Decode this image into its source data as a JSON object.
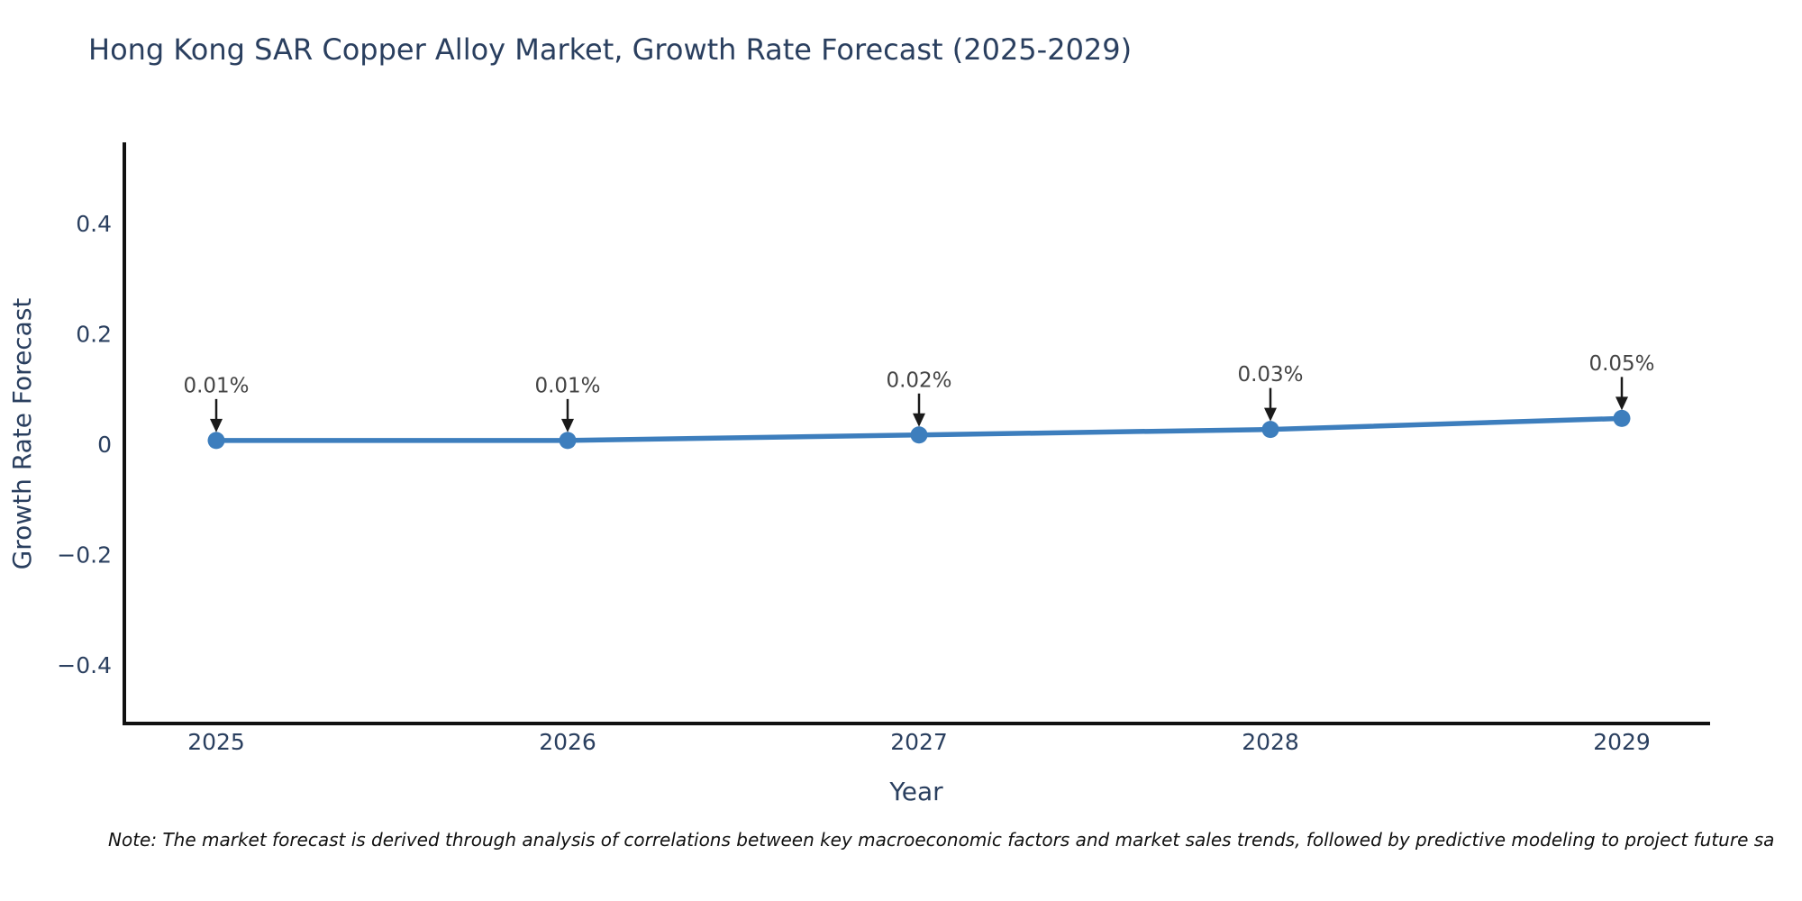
{
  "title": "Hong Kong SAR Copper Alloy Market, Growth Rate Forecast (2025-2029)",
  "note": "Note: The market forecast is derived through analysis of correlations between key macroeconomic factors and market sales trends, followed by predictive modeling to project future sa",
  "colors": {
    "line": "#3d7ebd",
    "marker": "#3d7ebd",
    "title_text": "#2a3f5f",
    "tick_text": "#2a3f5f",
    "axis_title_text": "#2a3f5f",
    "annotation_text": "#444444",
    "arrow": "#1a1a1a",
    "axis_line": "#111111",
    "background": "#ffffff"
  },
  "chart_data": {
    "type": "line",
    "title": "Hong Kong SAR Copper Alloy Market, Growth Rate Forecast (2025-2029)",
    "xlabel": "Year",
    "ylabel": "Growth Rate Forecast",
    "x": [
      2025,
      2026,
      2027,
      2028,
      2029
    ],
    "y": [
      0.01,
      0.01,
      0.02,
      0.03,
      0.05
    ],
    "point_labels": [
      "0.01%",
      "0.01%",
      "0.02%",
      "0.03%",
      "0.05%"
    ],
    "x_tick_labels": [
      "2025",
      "2026",
      "2027",
      "2028",
      "2029"
    ],
    "y_tick_values": [
      0.4,
      0.2,
      0,
      -0.2,
      -0.4
    ],
    "y_tick_labels": [
      "0.4",
      "0.2",
      "0",
      "−0.2",
      "−0.4"
    ],
    "ylim": [
      -0.503,
      0.55
    ],
    "xlim": [
      2024.74,
      2029.25
    ],
    "grid": false,
    "legend": "none",
    "marker_style": "circle",
    "annotation_style": "text-with-down-arrow"
  }
}
